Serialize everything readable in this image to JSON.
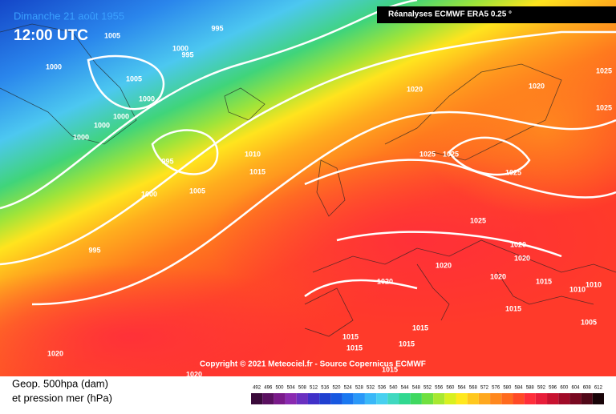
{
  "header": {
    "date": "Dimanche 21 août 1955",
    "time": "12:00 UTC"
  },
  "source_banner": "Réanalyses ECMWF ERA5 0.25 °",
  "copyright": "Copyright © 2021 Meteociel.fr - Source Copernicus ECMWF",
  "legend": {
    "line1": "Geop. 500hpa (dam)",
    "line2": "et pression mer (hPa)",
    "colorbar_ticks": [
      "492",
      "496",
      "500",
      "504",
      "508",
      "512",
      "516",
      "520",
      "524",
      "528",
      "532",
      "536",
      "540",
      "544",
      "548",
      "552",
      "556",
      "560",
      "564",
      "568",
      "572",
      "576",
      "580",
      "584",
      "588",
      "592",
      "596",
      "600",
      "604",
      "608",
      "612"
    ]
  },
  "isobar_labels": [
    "1005",
    "995",
    "1000",
    "995",
    "1000",
    "1005",
    "1000",
    "1000",
    "1000",
    "1000",
    "995",
    "1010",
    "1015",
    "1000",
    "1005",
    "995",
    "1020",
    "1020",
    "1025",
    "1025",
    "1025",
    "1025",
    "1025",
    "1025",
    "1020",
    "1020",
    "1020",
    "1020",
    "1020",
    "1015",
    "1010",
    "1010",
    "1015",
    "1005",
    "1015",
    "1015",
    "1015",
    "1015",
    "1015",
    "1020",
    "1020"
  ]
}
